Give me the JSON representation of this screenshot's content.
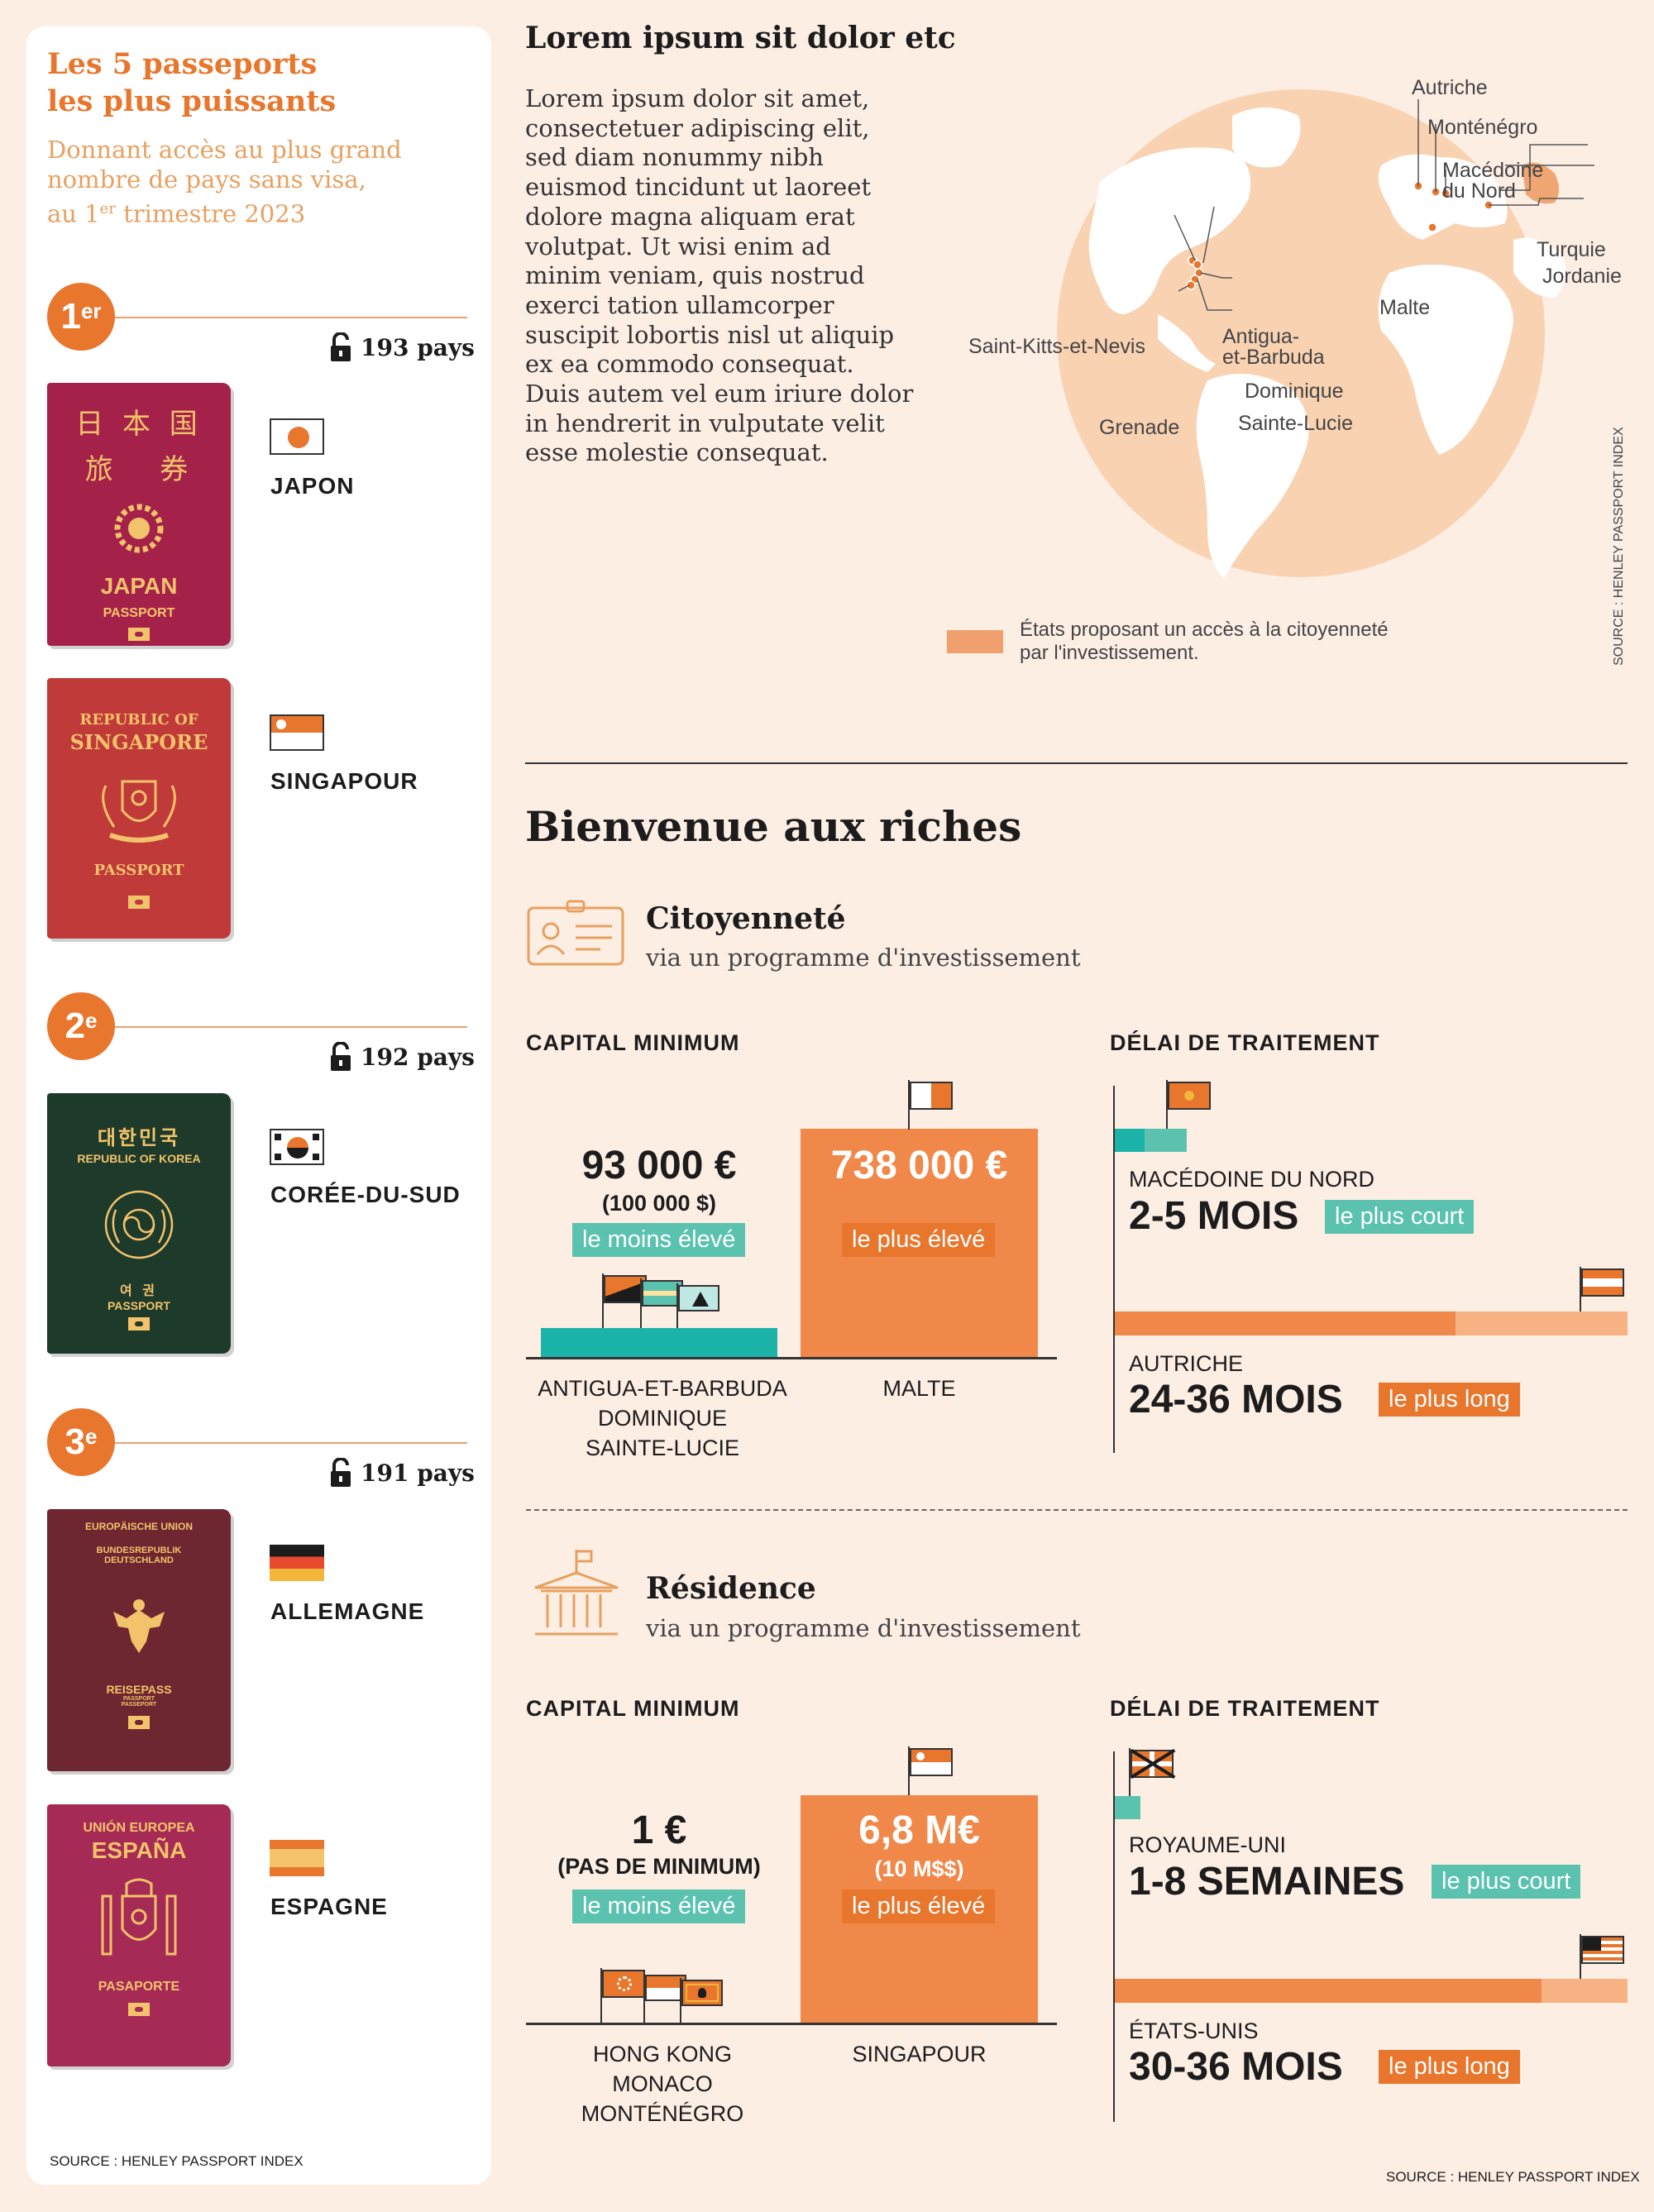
{
  "left": {
    "title_line1": "Les 5 passeports",
    "title_line2": "les plus puissants",
    "subtitle_line1": "Donnant accès au plus grand",
    "subtitle_line2": "nombre de pays sans visa,",
    "subtitle_line3_pre": "au 1",
    "subtitle_line3_sup": "er",
    "subtitle_line3_post": " trimestre 2023",
    "source": "SOURCE : HENLEY PASSPORT INDEX",
    "ranks": [
      {
        "num": "1",
        "sup": "er",
        "pays": "193 pays"
      },
      {
        "num": "2",
        "sup": "e",
        "pays": "192 pays"
      },
      {
        "num": "3",
        "sup": "e",
        "pays": "191 pays"
      }
    ],
    "countries": [
      "JAPON",
      "SINGAPOUR",
      "CORÉE-DU-SUD",
      "ALLEMAGNE",
      "ESPAGNE"
    ],
    "passports": {
      "japan": {
        "line1": "日 本 国",
        "line2": "旅   券",
        "name": "JAPAN",
        "sub": "PASSPORT"
      },
      "singapore": {
        "line1": "REPUBLIC OF",
        "line2": "SINGAPORE",
        "sub": "PASSPORT"
      },
      "korea": {
        "line1": "대한민국",
        "line2": "REPUBLIC OF KOREA",
        "line3": "여 권",
        "sub": "PASSPORT"
      },
      "germany": {
        "line1": "EUROPÄISCHE UNION",
        "line2": "BUNDESREPUBLIK",
        "line3": "DEUTSCHLAND",
        "sub": "REISEPASS",
        "sub2": "PASSPORT",
        "sub3": "PASSEPORT"
      },
      "spain": {
        "line1": "UNIÓN EUROPEA",
        "line2": "ESPAÑA",
        "sub": "PASAPORTE"
      }
    }
  },
  "top": {
    "title": "Lorem ipsum sit dolor etc",
    "body": [
      "Lorem ipsum dolor sit amet,",
      "consectetuer adipiscing elit,",
      "sed diam nonummy nibh",
      "euismod tincidunt ut laoreet",
      "dolore magna aliquam erat",
      "volutpat. Ut wisi enim ad",
      "minim veniam, quis nostrud",
      "exerci tation ullamcorper",
      "suscipit lobortis nisl ut aliquip",
      "ex ea commodo consequat.",
      "Duis autem vel eum iriure dolor",
      "in hendrerit in vulputate velit",
      "esse molestie consequat."
    ],
    "map_labels": {
      "autriche": "Autriche",
      "montenegro": "Monténégro",
      "macedoine1": "Macédoine",
      "macedoine2": "du Nord",
      "turquie": "Turquie",
      "jordanie": "Jordanie",
      "malte": "Malte",
      "skn": "Saint-Kitts-et-Nevis",
      "antigua1": "Antigua-",
      "antigua2": "et-Barbuda",
      "dominique": "Dominique",
      "sainte_lucie": "Sainte-Lucie",
      "grenade": "Grenade"
    },
    "legend1": "États proposant un accès à la citoyenneté",
    "legend2": "par l'investissement.",
    "source": "SOURCE : HENLEY PASSPORT INDEX"
  },
  "main": {
    "title": "Bienvenue aux riches",
    "citizenship": {
      "title": "Citoyenneté",
      "subtitle": "via un programme d'investissement",
      "capital_label": "CAPITAL MINIMUM",
      "delay_label": "DÉLAI DE TRAITEMENT",
      "low_value": "93 000 €",
      "low_sub": "(100 000 $)",
      "low_tag": "le moins élevé",
      "high_value": "738 000 €",
      "high_tag": "le plus élevé",
      "low_countries": [
        "ANTIGUA-ET-BARBUDA",
        "DOMINIQUE",
        "SAINTE-LUCIE"
      ],
      "high_country": "MALTE",
      "short_country": "MACÉDOINE DU NORD",
      "short_value": "2-5 MOIS",
      "short_tag": "le plus court",
      "long_country": "AUTRICHE",
      "long_value": "24-36 MOIS",
      "long_tag": "le plus long"
    },
    "residence": {
      "title": "Résidence",
      "subtitle": "via un programme d'investissement",
      "capital_label": "CAPITAL MINIMUM",
      "delay_label": "DÉLAI DE TRAITEMENT",
      "low_value": "1 €",
      "low_sub": "(PAS DE MINIMUM)",
      "low_tag": "le moins élevé",
      "high_value": "6,8 M€",
      "high_sub": "(10 M$$)",
      "high_tag": "le plus élevé",
      "low_countries": [
        "HONG KONG",
        "MONACO",
        "MONTÉNÉGRO"
      ],
      "high_country": "SINGAPOUR",
      "short_country": "ROYAUME-UNI",
      "short_value": "1-8 SEMAINES",
      "short_tag": "le plus court",
      "long_country": "ÉTATS-UNIS",
      "long_value": "30-36 MOIS",
      "long_tag": "le plus long"
    },
    "source": "SOURCE : HENLEY PASSPORT INDEX"
  },
  "colors": {
    "accent": "#e8762d",
    "teal": "#5bc2b0",
    "background": "#fdeee4"
  }
}
